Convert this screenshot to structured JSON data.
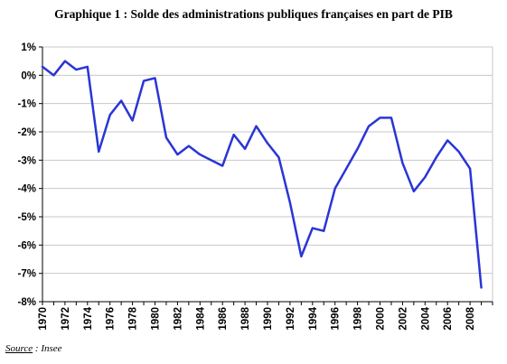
{
  "title": "Graphique 1 : Solde des administrations publiques françaises en part de PIB",
  "source": {
    "label": "Source",
    "sep": " : ",
    "value": "Insee"
  },
  "colors": {
    "line": "#2a35d6",
    "grid": "#c8c8c8",
    "axis": "#000000"
  },
  "chart_data": {
    "type": "line",
    "title": "Graphique 1 : Solde des administrations publiques françaises en part de PIB",
    "xlabel": "",
    "ylabel": "",
    "xlim": [
      1970,
      2010
    ],
    "ylim": [
      -8,
      1
    ],
    "grid": true,
    "y_ticks": [
      1,
      0,
      -1,
      -2,
      -3,
      -4,
      -5,
      -6,
      -7,
      -8
    ],
    "y_tick_labels": [
      "1%",
      "0%",
      "-1%",
      "-2%",
      "-3%",
      "-4%",
      "-5%",
      "-6%",
      "-7%",
      "-8%"
    ],
    "x_ticks": [
      1970,
      1972,
      1974,
      1976,
      1978,
      1980,
      1982,
      1984,
      1986,
      1988,
      1990,
      1992,
      1994,
      1996,
      1998,
      2000,
      2002,
      2004,
      2006,
      2008
    ],
    "x": [
      1970,
      1971,
      1972,
      1973,
      1974,
      1975,
      1976,
      1977,
      1978,
      1979,
      1980,
      1981,
      1982,
      1983,
      1984,
      1985,
      1986,
      1987,
      1988,
      1989,
      1990,
      1991,
      1992,
      1993,
      1994,
      1995,
      1996,
      1997,
      1998,
      1999,
      2000,
      2001,
      2002,
      2003,
      2004,
      2005,
      2006,
      2007,
      2008,
      2009
    ],
    "series": [
      {
        "values": [
          0.3,
          0.0,
          0.5,
          0.2,
          0.3,
          -2.7,
          -1.4,
          -0.9,
          -1.6,
          -0.2,
          -0.1,
          -2.2,
          -2.8,
          -2.5,
          -2.8,
          -3.0,
          -3.2,
          -2.1,
          -2.6,
          -1.8,
          -2.4,
          -2.9,
          -4.5,
          -6.4,
          -5.4,
          -5.5,
          -4.0,
          -3.3,
          -2.6,
          -1.8,
          -1.5,
          -1.5,
          -3.1,
          -4.1,
          -3.6,
          -2.9,
          -2.3,
          -2.7,
          -3.3,
          -7.5
        ]
      }
    ]
  }
}
